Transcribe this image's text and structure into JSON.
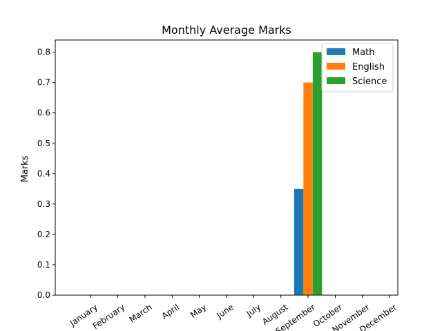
{
  "chart_data": {
    "type": "bar",
    "title": "Monthly Average Marks",
    "xlabel": "",
    "ylabel": "Marks",
    "ylim": [
      0,
      0.84
    ],
    "yticks": [
      0.0,
      0.1,
      0.2,
      0.3,
      0.4,
      0.5,
      0.6,
      0.7,
      0.8
    ],
    "ytick_labels": [
      "0.0",
      "0.1",
      "0.2",
      "0.3",
      "0.4",
      "0.5",
      "0.6",
      "0.7",
      "0.8"
    ],
    "categories": [
      "January",
      "February",
      "March",
      "April",
      "May",
      "June",
      "July",
      "August",
      "September",
      "October",
      "November",
      "December"
    ],
    "grid": false,
    "legend_position": "top-right",
    "series": [
      {
        "name": "Math",
        "color": "#1f77b4",
        "values": [
          0,
          0,
          0,
          0,
          0,
          0,
          0,
          0,
          0.35,
          0,
          0,
          0
        ]
      },
      {
        "name": "English",
        "color": "#ff7f0e",
        "values": [
          0,
          0,
          0,
          0,
          0,
          0,
          0,
          0,
          0.7,
          0,
          0,
          0
        ]
      },
      {
        "name": "Science",
        "color": "#2ca02c",
        "values": [
          0,
          0,
          0,
          0,
          0,
          0,
          0,
          0,
          0.8,
          0,
          0,
          0
        ]
      }
    ]
  }
}
